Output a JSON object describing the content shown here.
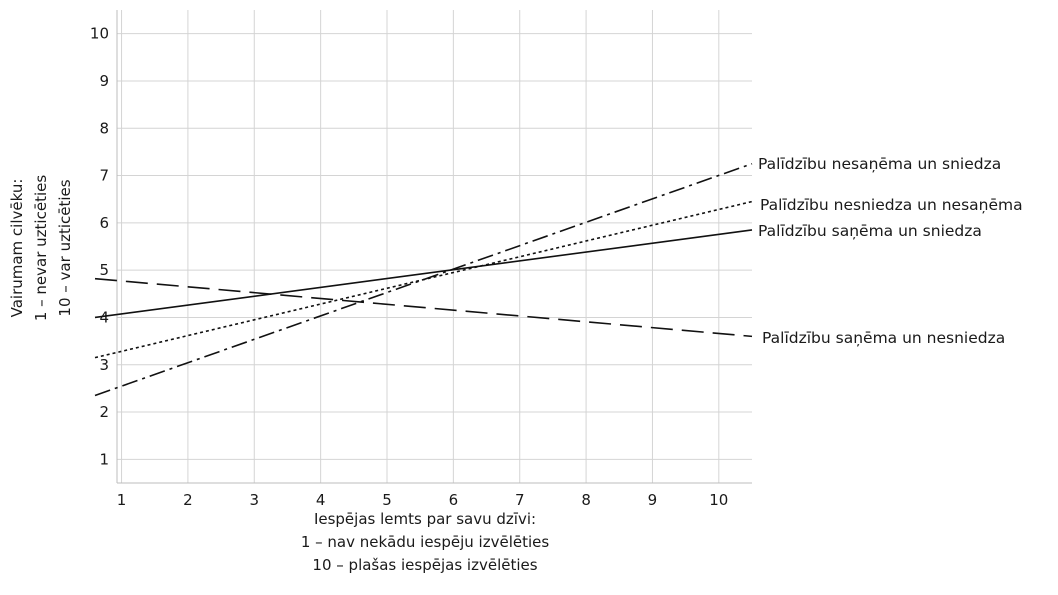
{
  "chart_data": {
    "type": "line",
    "title": "",
    "xlabel": [
      "Iespējas lemts par savu dzīvi:",
      "1 – nav nekādu iespēju izvēlēties",
      "10 – plašas iespējas izvēlēties"
    ],
    "ylabel": [
      "Vairumam cilvēku:",
      "1 – nevar uzticēties",
      "10 – var uzticēties"
    ],
    "xlim": [
      0.6,
      10.5
    ],
    "ylim": [
      0.5,
      10.5
    ],
    "xticks": [
      1,
      2,
      3,
      4,
      5,
      6,
      7,
      8,
      9,
      10
    ],
    "yticks": [
      1,
      2,
      3,
      4,
      5,
      6,
      7,
      8,
      9,
      10
    ],
    "grid": true,
    "series": [
      {
        "name": "Palīdzību nesaņēma un sniedza",
        "style": "dash-dot",
        "x": [
          0.6,
          10.5
        ],
        "y": [
          2.35,
          7.25
        ]
      },
      {
        "name": "Palīdzību nesniedza un nesaņēma",
        "style": "dotted",
        "x": [
          0.6,
          10.5
        ],
        "y": [
          3.15,
          6.45
        ]
      },
      {
        "name": "Palīdzību saņēma un sniedza",
        "style": "solid",
        "x": [
          0.6,
          10.5
        ],
        "y": [
          4.0,
          5.85
        ]
      },
      {
        "name": "Palīdzību saņēma un nesniedza",
        "style": "dashed",
        "x": [
          0.6,
          10.5
        ],
        "y": [
          4.82,
          3.6
        ]
      }
    ]
  }
}
